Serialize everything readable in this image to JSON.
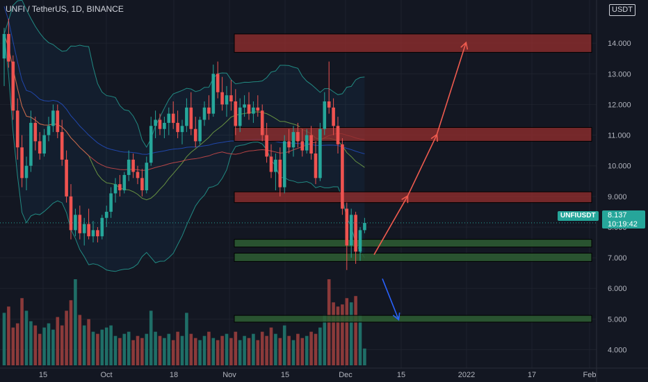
{
  "header": {
    "title": "UNFI / TetherUS, 1D, BINANCE",
    "unit": "USDT"
  },
  "price_tag": {
    "symbol": "UNFIUSDT",
    "price": "8.137",
    "countdown": "10:19:42"
  },
  "colors": {
    "background": "#131722",
    "up": "#26a69a",
    "down": "#ef5350",
    "resistance_zone": "#8e2d2d",
    "support_zone": "#2e5e33",
    "arrow_up": "#f05b4f",
    "arrow_down": "#2962ff"
  },
  "chart_data": {
    "type": "candlestick",
    "title": "UNFI / TetherUS, 1D, BINANCE",
    "y_ticks": [
      "14.000",
      "13.000",
      "12.000",
      "11.000",
      "10.000",
      "9.000",
      "8.000",
      "7.000",
      "6.000",
      "5.000",
      "4.000"
    ],
    "y_tick_values": [
      14,
      13,
      12,
      11,
      10,
      9,
      8,
      7,
      6,
      5,
      4
    ],
    "x_ticks": [
      "15",
      "Oct",
      "18",
      "Nov",
      "15",
      "Dec",
      "15",
      "2022",
      "17",
      "Feb"
    ],
    "ylim": [
      3.4,
      15.0
    ],
    "last_price": 8.137,
    "resistance_zones": [
      [
        13.7,
        14.3
      ],
      [
        10.8,
        11.25
      ],
      [
        8.8,
        9.15
      ]
    ],
    "support_zones": [
      [
        7.35,
        7.6
      ],
      [
        6.88,
        7.15
      ],
      [
        4.9,
        5.12
      ]
    ],
    "projection_up": [
      [
        7.1,
        8.1,
        9.0,
        11.0,
        14.0
      ]
    ],
    "projection_down": [
      [
        6.95,
        5.0
      ]
    ],
    "candles_ohlc": [
      [
        13.5,
        14.5,
        12.6,
        14.3
      ],
      [
        14.3,
        14.8,
        13.2,
        13.4
      ],
      [
        13.4,
        13.6,
        11.5,
        11.8
      ],
      [
        11.8,
        12.2,
        10.2,
        10.6
      ],
      [
        10.6,
        11.0,
        9.3,
        9.6
      ],
      [
        9.6,
        10.3,
        9.2,
        10.0
      ],
      [
        10.0,
        11.8,
        9.8,
        11.4
      ],
      [
        11.4,
        11.6,
        10.5,
        10.8
      ],
      [
        10.8,
        11.1,
        10.2,
        10.4
      ],
      [
        10.4,
        11.2,
        10.3,
        11.0
      ],
      [
        11.0,
        11.6,
        10.8,
        11.3
      ],
      [
        11.3,
        12.0,
        11.1,
        11.8
      ],
      [
        11.8,
        12.0,
        10.9,
        11.1
      ],
      [
        11.1,
        11.5,
        10.0,
        10.2
      ],
      [
        10.2,
        10.5,
        8.8,
        9.0
      ],
      [
        9.0,
        9.4,
        7.6,
        7.9
      ],
      [
        7.9,
        8.6,
        7.7,
        8.4
      ],
      [
        8.4,
        8.7,
        7.6,
        7.8
      ],
      [
        7.8,
        8.3,
        7.4,
        8.1
      ],
      [
        8.1,
        8.6,
        7.6,
        7.7
      ],
      [
        7.7,
        8.2,
        7.5,
        7.9
      ],
      [
        7.9,
        8.0,
        7.5,
        7.7
      ],
      [
        7.7,
        8.4,
        7.6,
        8.3
      ],
      [
        8.3,
        8.7,
        8.0,
        8.5
      ],
      [
        8.5,
        9.3,
        8.3,
        9.1
      ],
      [
        9.1,
        9.6,
        8.8,
        9.4
      ],
      [
        9.4,
        9.7,
        9.0,
        9.2
      ],
      [
        9.2,
        9.8,
        9.1,
        9.7
      ],
      [
        9.7,
        10.5,
        9.5,
        10.2
      ],
      [
        10.2,
        10.4,
        9.6,
        9.8
      ],
      [
        9.8,
        10.0,
        9.4,
        9.6
      ],
      [
        9.6,
        9.9,
        9.0,
        9.2
      ],
      [
        9.2,
        10.3,
        9.1,
        10.1
      ],
      [
        10.1,
        11.6,
        10.0,
        11.3
      ],
      [
        11.3,
        11.8,
        10.9,
        11.5
      ],
      [
        11.5,
        11.7,
        11.0,
        11.2
      ],
      [
        11.2,
        11.6,
        10.9,
        11.4
      ],
      [
        11.4,
        11.9,
        11.0,
        11.7
      ],
      [
        11.7,
        12.1,
        11.2,
        11.4
      ],
      [
        11.4,
        11.8,
        10.9,
        11.1
      ],
      [
        11.1,
        11.5,
        10.7,
        11.3
      ],
      [
        11.3,
        12.2,
        11.1,
        11.9
      ],
      [
        11.9,
        12.4,
        11.0,
        11.2
      ],
      [
        11.2,
        11.6,
        10.6,
        10.8
      ],
      [
        10.8,
        11.6,
        10.7,
        11.5
      ],
      [
        11.5,
        12.1,
        11.3,
        11.9
      ],
      [
        11.9,
        12.3,
        11.5,
        11.7
      ],
      [
        11.7,
        13.3,
        11.6,
        13.0
      ],
      [
        13.0,
        13.4,
        12.2,
        12.4
      ],
      [
        12.4,
        12.9,
        11.8,
        12.0
      ],
      [
        12.0,
        12.6,
        11.6,
        12.3
      ],
      [
        12.3,
        12.8,
        11.8,
        12.1
      ],
      [
        12.1,
        12.5,
        11.0,
        11.3
      ],
      [
        11.3,
        12.2,
        11.1,
        11.9
      ],
      [
        11.9,
        12.3,
        11.6,
        12.0
      ],
      [
        12.0,
        12.4,
        11.5,
        11.7
      ],
      [
        11.7,
        12.1,
        11.4,
        11.9
      ],
      [
        11.9,
        12.3,
        11.6,
        11.8
      ],
      [
        11.8,
        12.0,
        10.8,
        11.0
      ],
      [
        11.0,
        11.4,
        10.1,
        10.3
      ],
      [
        10.3,
        10.7,
        9.6,
        9.8
      ],
      [
        9.8,
        10.4,
        9.2,
        10.2
      ],
      [
        10.2,
        10.6,
        9.0,
        9.3
      ],
      [
        9.3,
        11.0,
        9.1,
        10.8
      ],
      [
        10.8,
        11.2,
        10.4,
        10.6
      ],
      [
        10.6,
        11.3,
        10.3,
        11.1
      ],
      [
        11.1,
        11.4,
        10.6,
        10.8
      ],
      [
        10.8,
        11.2,
        10.3,
        10.5
      ],
      [
        10.5,
        11.2,
        10.4,
        11.0
      ],
      [
        11.0,
        11.3,
        10.2,
        10.4
      ],
      [
        10.4,
        10.8,
        9.4,
        9.6
      ],
      [
        9.6,
        11.4,
        9.5,
        11.2
      ],
      [
        11.2,
        12.4,
        11.0,
        12.1
      ],
      [
        12.1,
        13.4,
        11.7,
        11.9
      ],
      [
        11.9,
        12.2,
        11.0,
        11.3
      ],
      [
        11.3,
        11.6,
        10.4,
        10.7
      ],
      [
        10.7,
        10.9,
        8.4,
        8.6
      ],
      [
        8.6,
        8.8,
        6.6,
        7.4
      ],
      [
        7.4,
        8.6,
        7.0,
        8.4
      ],
      [
        8.4,
        8.5,
        6.8,
        7.2
      ],
      [
        7.2,
        8.0,
        6.9,
        7.9
      ],
      [
        7.9,
        8.3,
        7.8,
        8.137
      ]
    ],
    "volume": [
      2.5,
      2.8,
      1.8,
      2.0,
      3.2,
      2.6,
      2.1,
      1.9,
      1.5,
      1.8,
      2.0,
      1.7,
      2.3,
      1.9,
      2.6,
      3.1,
      4.1,
      2.4,
      1.9,
      2.2,
      1.6,
      1.5,
      1.7,
      1.8,
      1.9,
      1.4,
      1.3,
      1.5,
      1.6,
      1.2,
      1.4,
      1.3,
      1.5,
      2.6,
      1.6,
      1.4,
      1.3,
      1.5,
      1.2,
      1.6,
      1.4,
      2.5,
      1.5,
      1.3,
      1.2,
      1.4,
      1.6,
      1.3,
      1.2,
      1.4,
      1.5,
      1.3,
      1.6,
      1.2,
      1.4,
      1.3,
      1.5,
      1.2,
      1.6,
      1.4,
      1.8,
      1.5,
      1.3,
      1.9,
      1.4,
      1.2,
      1.5,
      1.3,
      1.4,
      1.6,
      1.5,
      1.8,
      2.4,
      4.1,
      3.0,
      2.8,
      2.9,
      3.2,
      3.0,
      3.3,
      2.4,
      0.8
    ]
  }
}
